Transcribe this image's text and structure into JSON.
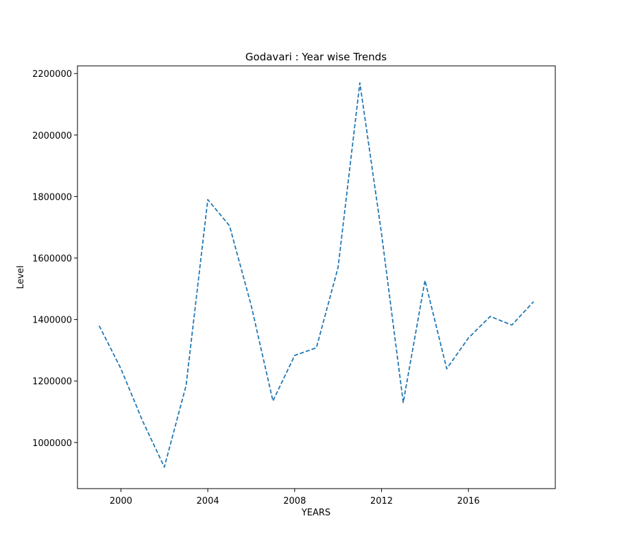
{
  "chart_data": {
    "type": "line",
    "title": "Godavari : Year wise Trends",
    "xlabel": "YEARS",
    "ylabel": "Level",
    "grid": false,
    "line_style": "dashed",
    "color": "#1f77b4",
    "xlim": [
      1998.0,
      2020.0
    ],
    "ylim": [
      850000,
      2225000
    ],
    "x_ticks": [
      2000,
      2004,
      2008,
      2012,
      2016
    ],
    "y_ticks": [
      1000000,
      1200000,
      1400000,
      1600000,
      1800000,
      2000000,
      2200000
    ],
    "x": [
      1999,
      2000,
      2001,
      2002,
      2003,
      2004,
      2005,
      2006,
      2007,
      2008,
      2009,
      2010,
      2011,
      2012,
      2013,
      2014,
      2015,
      2016,
      2017,
      2018,
      2019
    ],
    "series": [
      {
        "values": [
          1380000,
          1240000,
          1070000,
          920000,
          1185000,
          1790000,
          1705000,
          1445000,
          1135000,
          1283000,
          1308000,
          1570000,
          2170000,
          1680000,
          1130000,
          1527000,
          1240000,
          1340000,
          1410000,
          1382000,
          1458000
        ]
      }
    ]
  }
}
